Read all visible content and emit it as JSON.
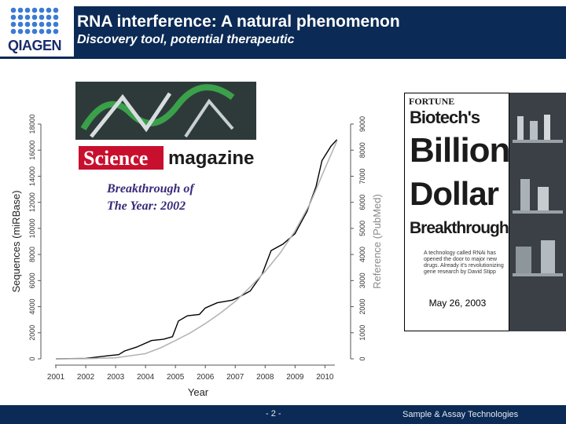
{
  "header": {
    "logo_text": "QIAGEN",
    "title": "RNA interference: A natural phenomenon",
    "subtitle": "Discovery tool, potential therapeutic"
  },
  "science_cover": {
    "masthead": "Science",
    "masthead_suffix": "magazine",
    "headline_line1": "Breakthrough of",
    "headline_line2": "The Year: 2002"
  },
  "fortune_cover": {
    "brand": "FORTUNE",
    "line1": "Biotech's",
    "line2": "Billion",
    "line3": "Dollar",
    "line4": "Breakthrough",
    "blurb": "A technology called RNAi has opened the door to major new drugs. Already it's revolutionizing gene research by David Stipp",
    "caption": "May 26, 2003"
  },
  "chart_data": {
    "type": "line",
    "x": [
      2001,
      2002,
      2003,
      2004,
      2005,
      2006,
      2007,
      2008,
      2009,
      2010
    ],
    "xlabel": "Year",
    "ylabel_left": "Sequences (miRBase)",
    "ylabel_right": "Reference (PubMed)",
    "xlim": [
      2000.5,
      2010.7
    ],
    "left_ylim": [
      0,
      18000
    ],
    "right_ylim": [
      0,
      9000
    ],
    "left_ticks": [
      0,
      2000,
      4000,
      6000,
      8000,
      10000,
      12000,
      14000,
      16000,
      18000
    ],
    "right_ticks": [
      0,
      1000,
      2000,
      3000,
      4000,
      5000,
      6000,
      7000,
      8000,
      9000
    ],
    "series": [
      {
        "axis": "left",
        "color": "#000000",
        "points": [
          [
            2001,
            0
          ],
          [
            2002,
            30
          ],
          [
            2002.8,
            250
          ],
          [
            2003.1,
            320
          ],
          [
            2003.3,
            600
          ],
          [
            2003.7,
            900
          ],
          [
            2004.2,
            1400
          ],
          [
            2004.6,
            1500
          ],
          [
            2004.9,
            1700
          ],
          [
            2005.1,
            2900
          ],
          [
            2005.4,
            3300
          ],
          [
            2005.8,
            3400
          ],
          [
            2006.0,
            3900
          ],
          [
            2006.4,
            4300
          ],
          [
            2006.9,
            4500
          ],
          [
            2007.1,
            4700
          ],
          [
            2007.5,
            5200
          ],
          [
            2007.9,
            6500
          ],
          [
            2008.2,
            8300
          ],
          [
            2008.6,
            8800
          ],
          [
            2009.0,
            9600
          ],
          [
            2009.4,
            11300
          ],
          [
            2009.7,
            13200
          ],
          [
            2009.9,
            15200
          ],
          [
            2010.2,
            16300
          ],
          [
            2010.4,
            16800
          ]
        ]
      },
      {
        "axis": "right",
        "color": "#b4b4b4",
        "points": [
          [
            2001,
            0
          ],
          [
            2002,
            5
          ],
          [
            2003,
            40
          ],
          [
            2004,
            200
          ],
          [
            2004.5,
            420
          ],
          [
            2005,
            700
          ],
          [
            2005.5,
            1000
          ],
          [
            2006,
            1350
          ],
          [
            2006.5,
            1750
          ],
          [
            2007,
            2200
          ],
          [
            2007.5,
            2750
          ],
          [
            2008,
            3350
          ],
          [
            2008.5,
            4050
          ],
          [
            2009,
            4900
          ],
          [
            2009.5,
            5950
          ],
          [
            2010,
            7300
          ],
          [
            2010.4,
            8350
          ]
        ]
      }
    ]
  },
  "footer": {
    "page": "- 2 -",
    "tagline": "Sample & Assay Technologies"
  }
}
